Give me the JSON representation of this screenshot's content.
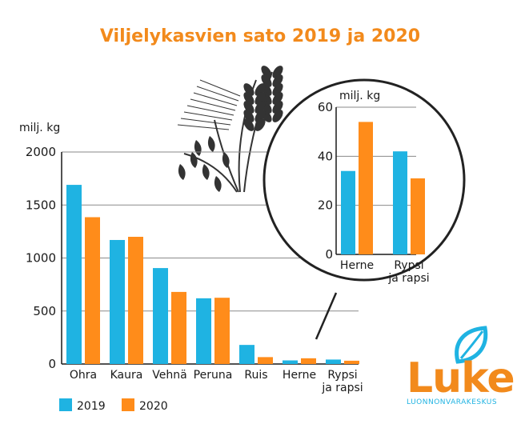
{
  "colors": {
    "series_2019": "#1FB3E2",
    "series_2020": "#FF8C1A",
    "title": "#F28A1C",
    "logo_orange": "#F28A1C",
    "logo_blue": "#1FB3E2",
    "illustration": "#333333"
  },
  "icons": {
    "illustration": "grain-ears-illustration",
    "logo_leaf": "leaf-icon"
  },
  "logo": {
    "word": "Luke",
    "subtitle": "LUONNONVARAKESKUS"
  },
  "chart_data": [
    {
      "type": "bar",
      "title": "Viljelykasvien sato 2019 ja 2020",
      "ylabel": "milj. kg",
      "ylim": [
        0,
        2000
      ],
      "yticks": [
        "0",
        "500",
        "1000",
        "1500",
        "2000"
      ],
      "categories": [
        "Ohra",
        "Kaura",
        "Vehnä",
        "Peruna",
        "Ruis",
        "Herne",
        [
          "Rypsi",
          "ja rapsi"
        ]
      ],
      "series": [
        {
          "name": "2019",
          "values": [
            1690,
            1170,
            905,
            620,
            180,
            34,
            42
          ]
        },
        {
          "name": "2020",
          "values": [
            1385,
            1200,
            680,
            625,
            65,
            54,
            31
          ]
        }
      ],
      "legend": "bottom-left",
      "grid": true
    },
    {
      "type": "bar",
      "ylabel": "milj. kg",
      "ylim": [
        0,
        60
      ],
      "yticks": [
        "0",
        "20",
        "40",
        "60"
      ],
      "categories": [
        "Herne",
        [
          "Rypsi",
          "ja rapsi"
        ]
      ],
      "series": [
        {
          "name": "2019",
          "values": [
            34,
            42
          ]
        },
        {
          "name": "2020",
          "values": [
            54,
            31
          ]
        }
      ],
      "grid": true
    }
  ]
}
